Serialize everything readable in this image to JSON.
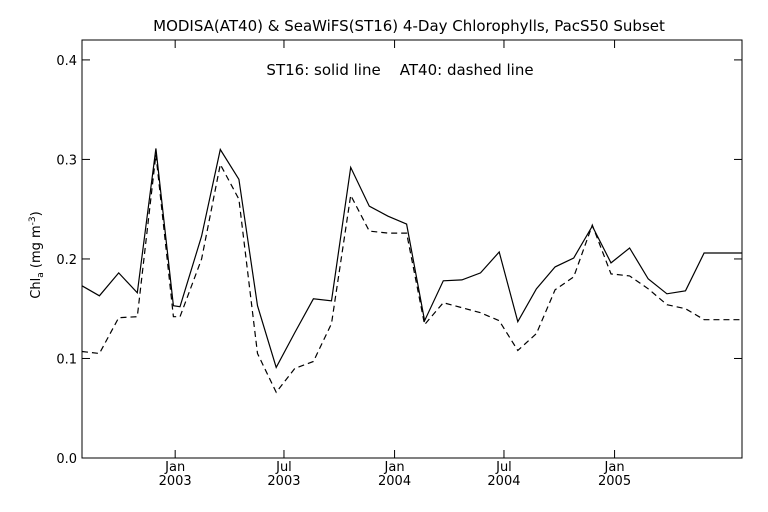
{
  "chart_data": {
    "type": "line",
    "title": "MODISA(AT40) & SeaWiFS(ST16) 4-Day Chlorophylls, PacS50 Subset",
    "annotation": "ST16: solid line    AT40: dashed line",
    "ylabel": "Chl",
    "ylabel_sub": "a",
    "ylabel_unit": " (mg m",
    "ylabel_sup": "-3",
    "ylabel_close": ")",
    "ylim": [
      0.0,
      0.42
    ],
    "yticks": [
      0.0,
      0.1,
      0.2,
      0.3,
      0.4
    ],
    "ytick_labels": [
      "0.0",
      "0.1",
      "0.2",
      "0.3",
      "0.4"
    ],
    "xlim": [
      "2002-07-30",
      "2005-08-01"
    ],
    "xticks": [
      {
        "date": "2003-01-01",
        "month": "Jan",
        "year": "2003"
      },
      {
        "date": "2003-07-01",
        "month": "Jul",
        "year": "2003"
      },
      {
        "date": "2004-01-01",
        "month": "Jan",
        "year": "2004"
      },
      {
        "date": "2004-07-01",
        "month": "Jul",
        "year": "2004"
      },
      {
        "date": "2005-01-01",
        "month": "Jan",
        "year": "2005"
      }
    ],
    "x": [
      "2002-07-30",
      "2002-08-28",
      "2002-09-29",
      "2002-10-30",
      "2002-11-30",
      "2002-12-29",
      "2003-01-09",
      "2003-02-14",
      "2003-03-17",
      "2003-04-17",
      "2003-05-18",
      "2003-06-18",
      "2003-07-19",
      "2003-08-19",
      "2003-09-18",
      "2003-10-20",
      "2003-11-20",
      "2003-12-21",
      "2004-01-21",
      "2004-02-20",
      "2004-03-22",
      "2004-04-22",
      "2004-05-23",
      "2004-06-23",
      "2004-07-24",
      "2004-08-24",
      "2004-09-24",
      "2004-10-25",
      "2004-11-25",
      "2004-12-26",
      "2005-01-26",
      "2005-02-26",
      "2005-03-29",
      "2005-04-29",
      "2005-05-30",
      "2005-06-30",
      "2005-08-01"
    ],
    "series": [
      {
        "name": "ST16",
        "style": "solid",
        "values": [
          0.173,
          0.163,
          0.186,
          0.166,
          0.311,
          0.153,
          0.152,
          0.223,
          0.31,
          0.28,
          0.153,
          0.091,
          0.126,
          0.16,
          0.158,
          0.292,
          0.253,
          0.243,
          0.235,
          0.138,
          0.178,
          0.179,
          0.186,
          0.207,
          0.137,
          0.17,
          0.192,
          0.201,
          0.233,
          0.196,
          0.211,
          0.18,
          0.165,
          0.168,
          0.206,
          0.206,
          0.206
        ]
      },
      {
        "name": "AT40",
        "style": "dashed",
        "values": [
          0.107,
          0.105,
          0.141,
          0.142,
          0.305,
          0.142,
          0.142,
          0.2,
          0.295,
          0.26,
          0.105,
          0.066,
          0.09,
          0.097,
          0.135,
          0.264,
          0.228,
          0.226,
          0.226,
          0.134,
          0.156,
          0.151,
          0.146,
          0.138,
          0.108,
          0.125,
          0.169,
          0.182,
          0.234,
          0.185,
          0.183,
          0.17,
          0.154,
          0.15,
          0.139,
          0.139,
          0.139
        ]
      }
    ],
    "grid": false,
    "legend": "none"
  }
}
